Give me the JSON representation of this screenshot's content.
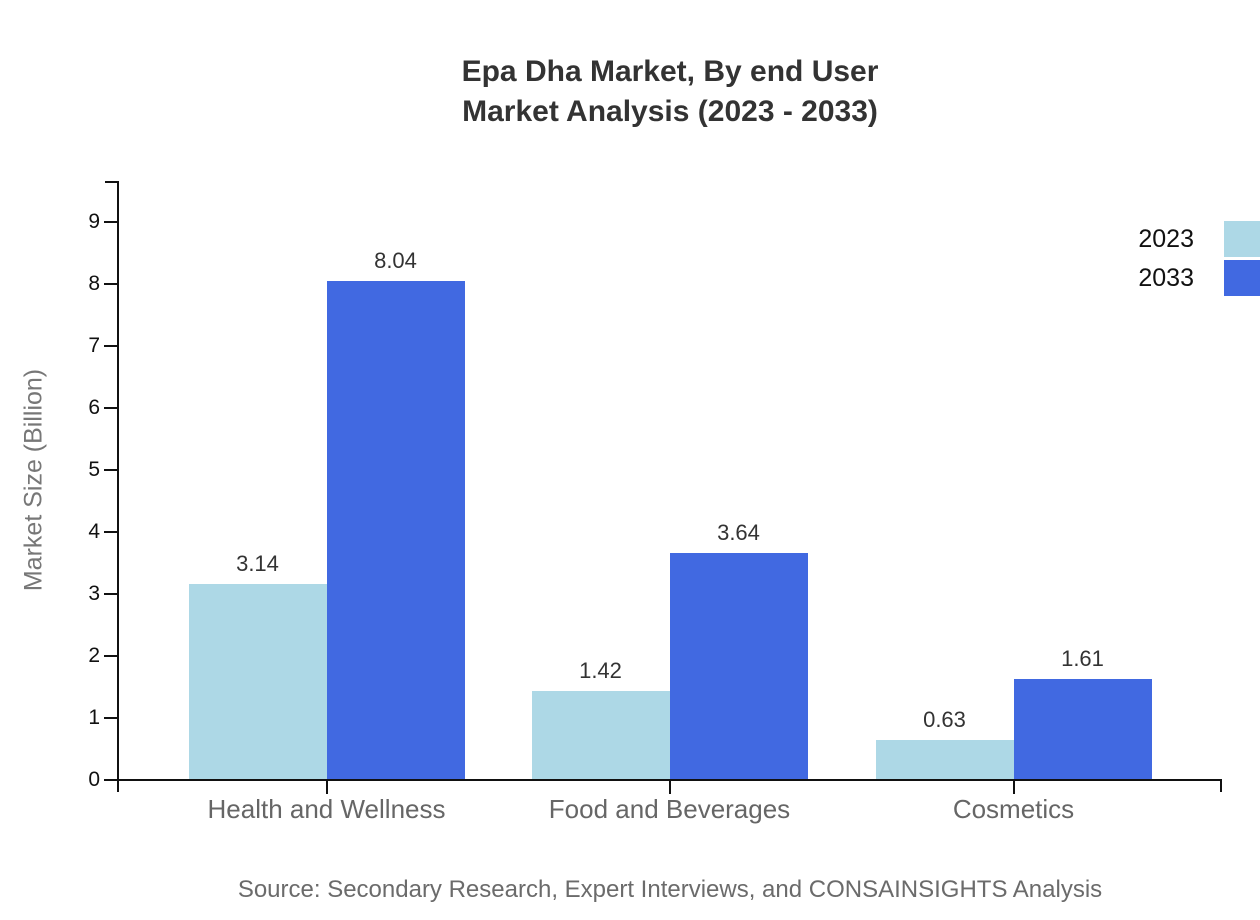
{
  "title": {
    "line1": "Epa Dha Market, By end User",
    "line2": "Market Analysis (2023 - 2033)"
  },
  "chart_data": {
    "type": "bar",
    "title": "Epa Dha Market, By end User Market Analysis (2023 - 2033)",
    "categories": [
      "Health and Wellness",
      "Food and Beverages",
      "Cosmetics"
    ],
    "series": [
      {
        "name": "2023",
        "color": "#ADD8E6",
        "values": [
          3.14,
          1.42,
          0.63
        ]
      },
      {
        "name": "2033",
        "color": "#4169E1",
        "values": [
          8.04,
          3.64,
          1.61
        ]
      }
    ],
    "xlabel": "",
    "ylabel": "Market Size (Billion)",
    "ylim": [
      0,
      9.65
    ],
    "yticks": [
      0,
      1,
      2,
      3,
      4,
      5,
      6,
      7,
      8,
      9
    ],
    "grid": false,
    "value_labels": true,
    "legend_position": "top-right"
  },
  "footer": {
    "source": "Source: Secondary Research, Expert Interviews, and CONSAINSIGHTS Analysis"
  },
  "colors": {
    "series_2023": "#ADD8E6",
    "series_2033": "#4169E1",
    "title_text": "#333333",
    "axis_line": "#111111",
    "axis_label_gray": "#666666",
    "background": "#ffffff"
  }
}
